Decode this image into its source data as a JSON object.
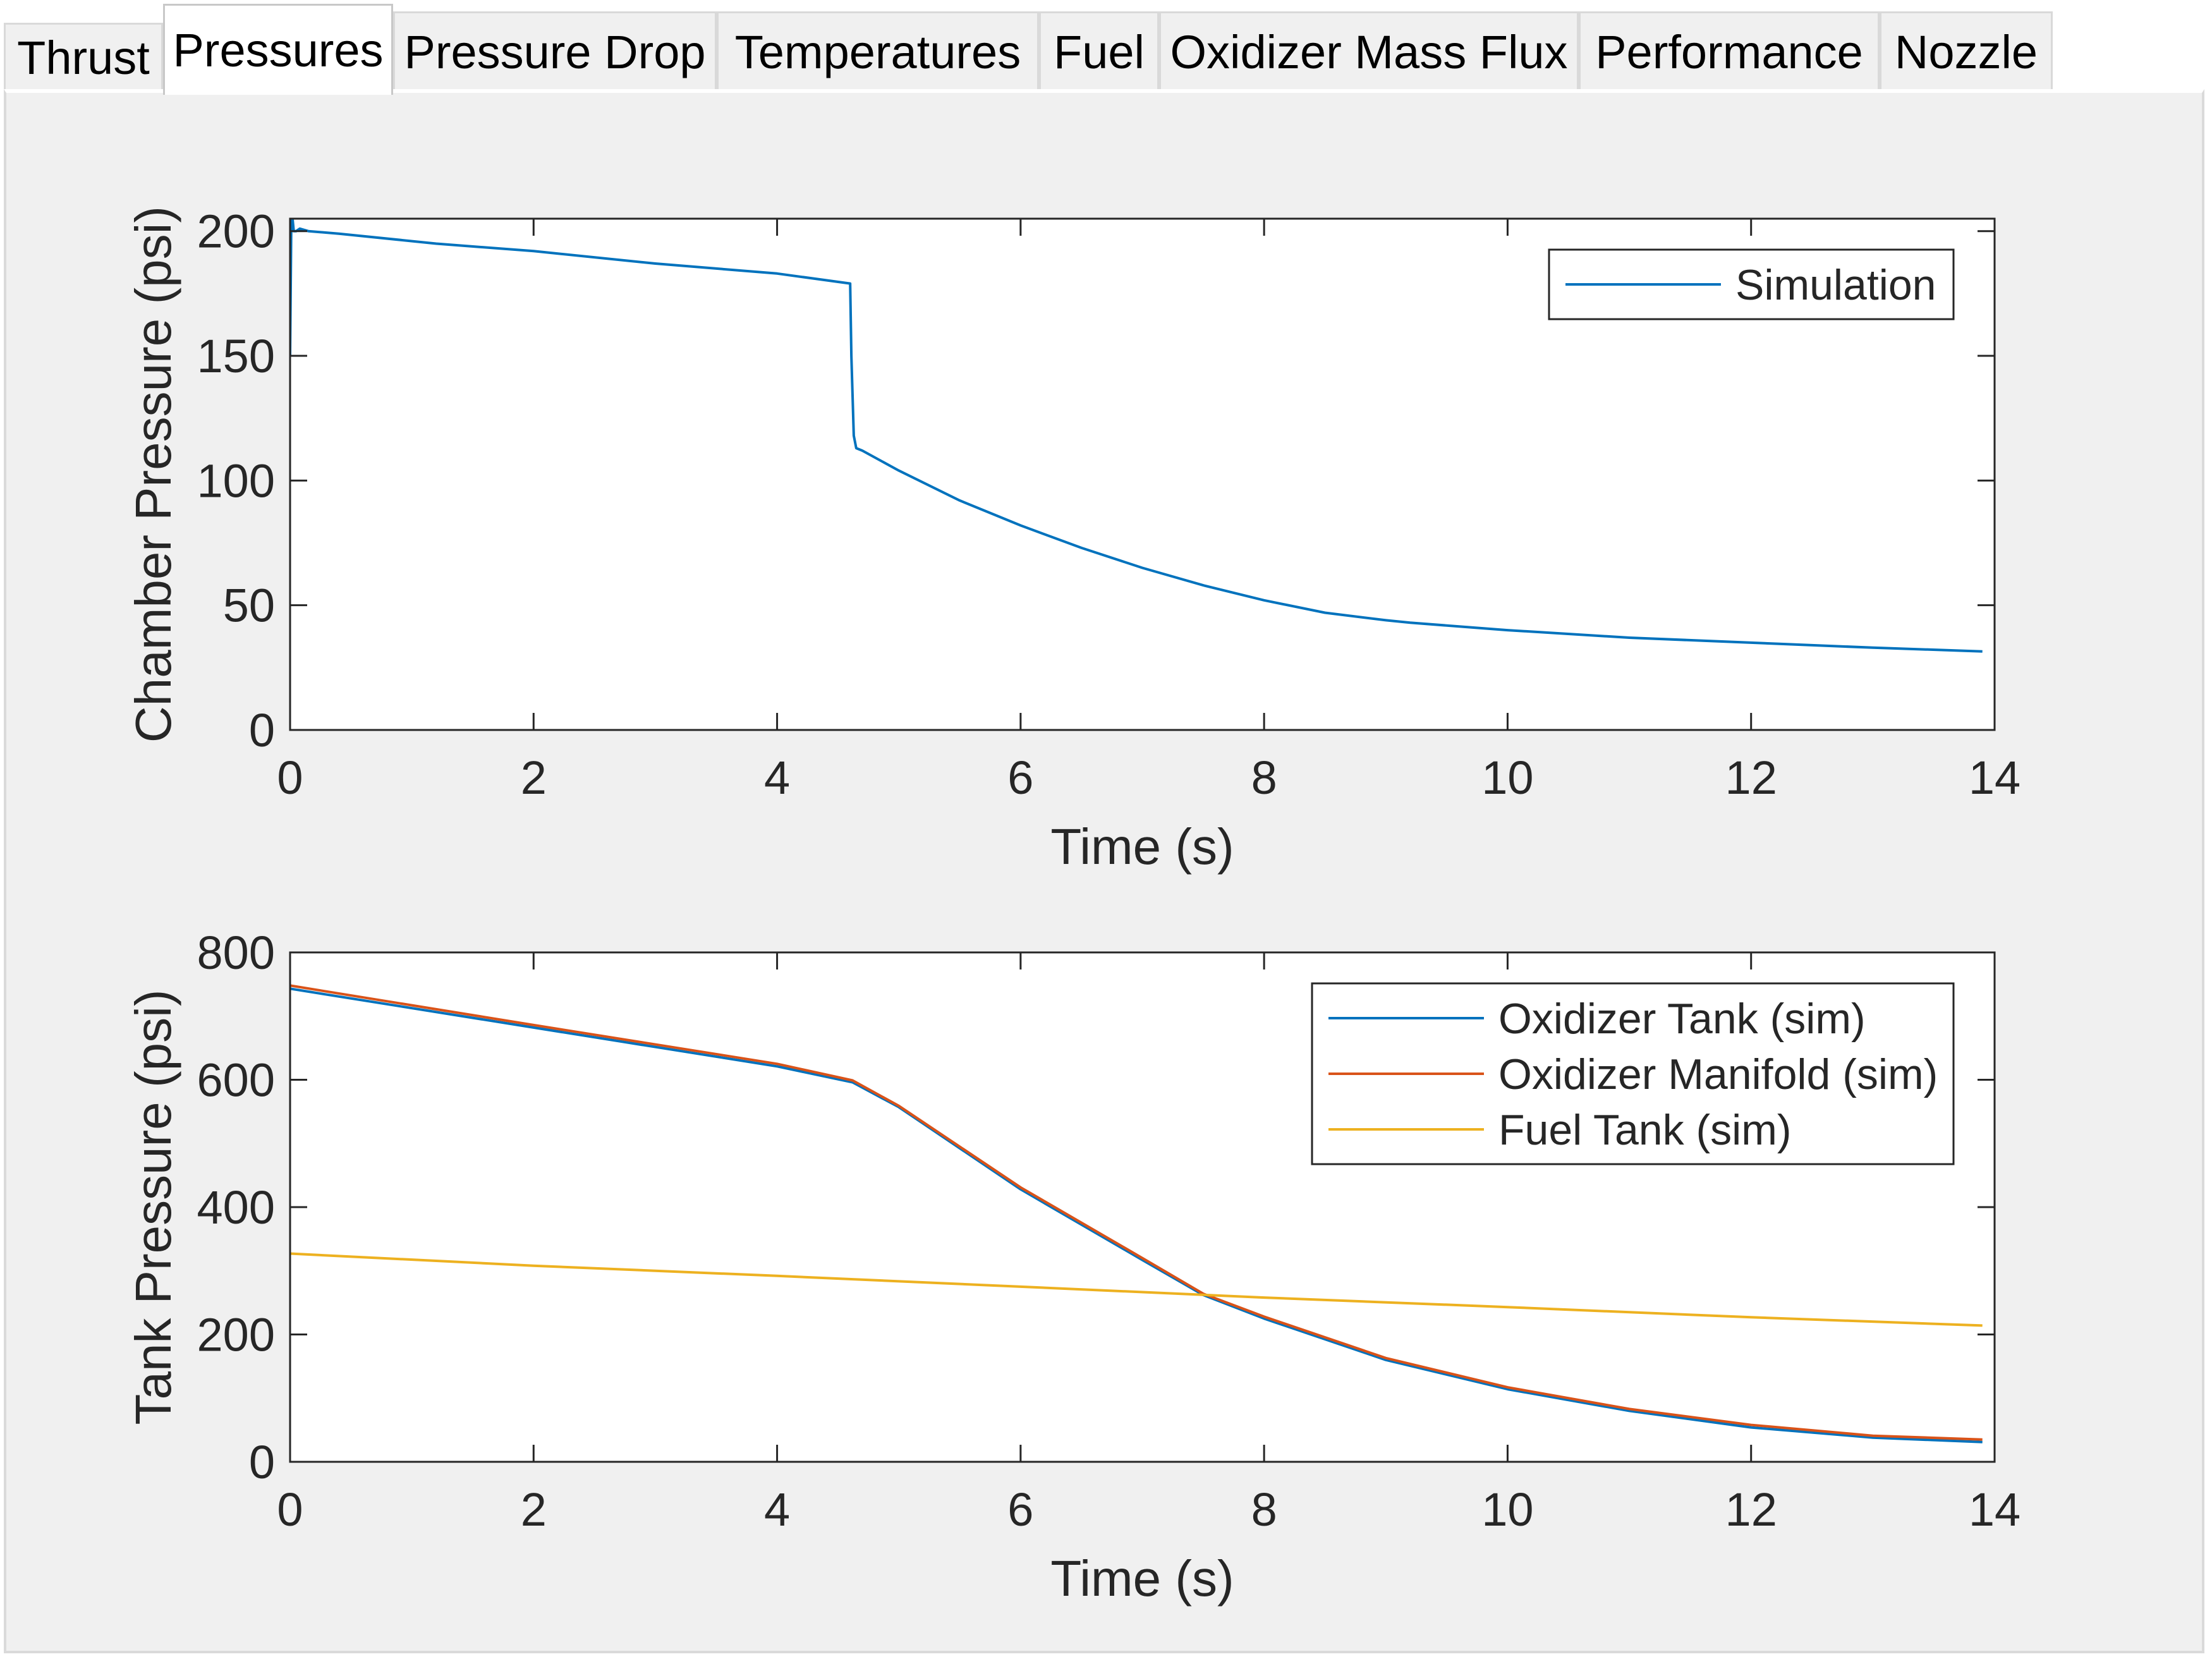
{
  "tabs": [
    {
      "label": "Thrust",
      "active": false
    },
    {
      "label": "Pressures",
      "active": true
    },
    {
      "label": "Pressure Drop",
      "active": false
    },
    {
      "label": "Temperatures",
      "active": false
    },
    {
      "label": "Fuel",
      "active": false
    },
    {
      "label": "Oxidizer Mass Flux",
      "active": false
    },
    {
      "label": "Performance",
      "active": false
    },
    {
      "label": "Nozzle",
      "active": false
    }
  ],
  "chart_data": [
    {
      "type": "line",
      "xlabel": "Time (s)",
      "ylabel": "Chamber Pressure (psi)",
      "xlim": [
        0,
        14
      ],
      "ylim": [
        0,
        205
      ],
      "xticks": [
        0,
        2,
        4,
        6,
        8,
        10,
        12,
        14
      ],
      "yticks": [
        0,
        50,
        100,
        150,
        200
      ],
      "grid": false,
      "legend_position": "top-right",
      "series": [
        {
          "name": "Simulation",
          "color": "#0072BD",
          "x": [
            0,
            0.01,
            0.02,
            0.03,
            0.05,
            0.08,
            0.15,
            0.4,
            1.2,
            2.0,
            3.0,
            4.0,
            4.6,
            4.61,
            4.63,
            4.65,
            4.7,
            5.0,
            5.5,
            6.0,
            6.5,
            7.0,
            7.5,
            8.0,
            8.5,
            9.0,
            9.2,
            10.0,
            11.0,
            12.0,
            13.0,
            13.9
          ],
          "y": [
            150,
            204,
            205,
            200,
            200,
            201,
            200,
            199,
            195,
            192,
            187,
            183,
            179,
            150,
            118,
            113,
            112,
            104,
            92,
            82,
            73,
            65,
            58,
            52,
            47,
            44,
            43,
            40,
            37,
            35,
            33,
            31.5
          ]
        }
      ]
    },
    {
      "type": "line",
      "xlabel": "Time (s)",
      "ylabel": "Tank Pressure (psi)",
      "xlim": [
        0,
        14
      ],
      "ylim": [
        0,
        800
      ],
      "xticks": [
        0,
        2,
        4,
        6,
        8,
        10,
        12,
        14
      ],
      "yticks": [
        0,
        200,
        400,
        600,
        800
      ],
      "grid": false,
      "legend_position": "top-right",
      "series": [
        {
          "name": "Oxidizer Tank (sim)",
          "color": "#0072BD",
          "x": [
            0,
            2,
            4,
            4.62,
            5,
            6,
            7,
            7.5,
            8,
            9,
            10,
            11,
            12,
            13,
            13.9
          ],
          "y": [
            743,
            682,
            621,
            596,
            557,
            428,
            317,
            262,
            225,
            160,
            114,
            80,
            54,
            38,
            31
          ]
        },
        {
          "name": "Oxidizer Manifold (sim)",
          "color": "#D95319",
          "x": [
            0,
            2,
            4,
            4.62,
            5,
            6,
            7,
            7.5,
            8,
            9,
            10,
            11,
            12,
            13,
            13.9
          ],
          "y": [
            748,
            686,
            625,
            599,
            559,
            431,
            320,
            264,
            228,
            163,
            117,
            83,
            58,
            41,
            35
          ]
        },
        {
          "name": "Fuel Tank (sim)",
          "color": "#EDB120",
          "x": [
            0,
            2,
            4,
            6,
            8,
            10,
            12,
            13.9
          ],
          "y": [
            327,
            308,
            292,
            275,
            258,
            243,
            227,
            214
          ]
        }
      ]
    }
  ]
}
